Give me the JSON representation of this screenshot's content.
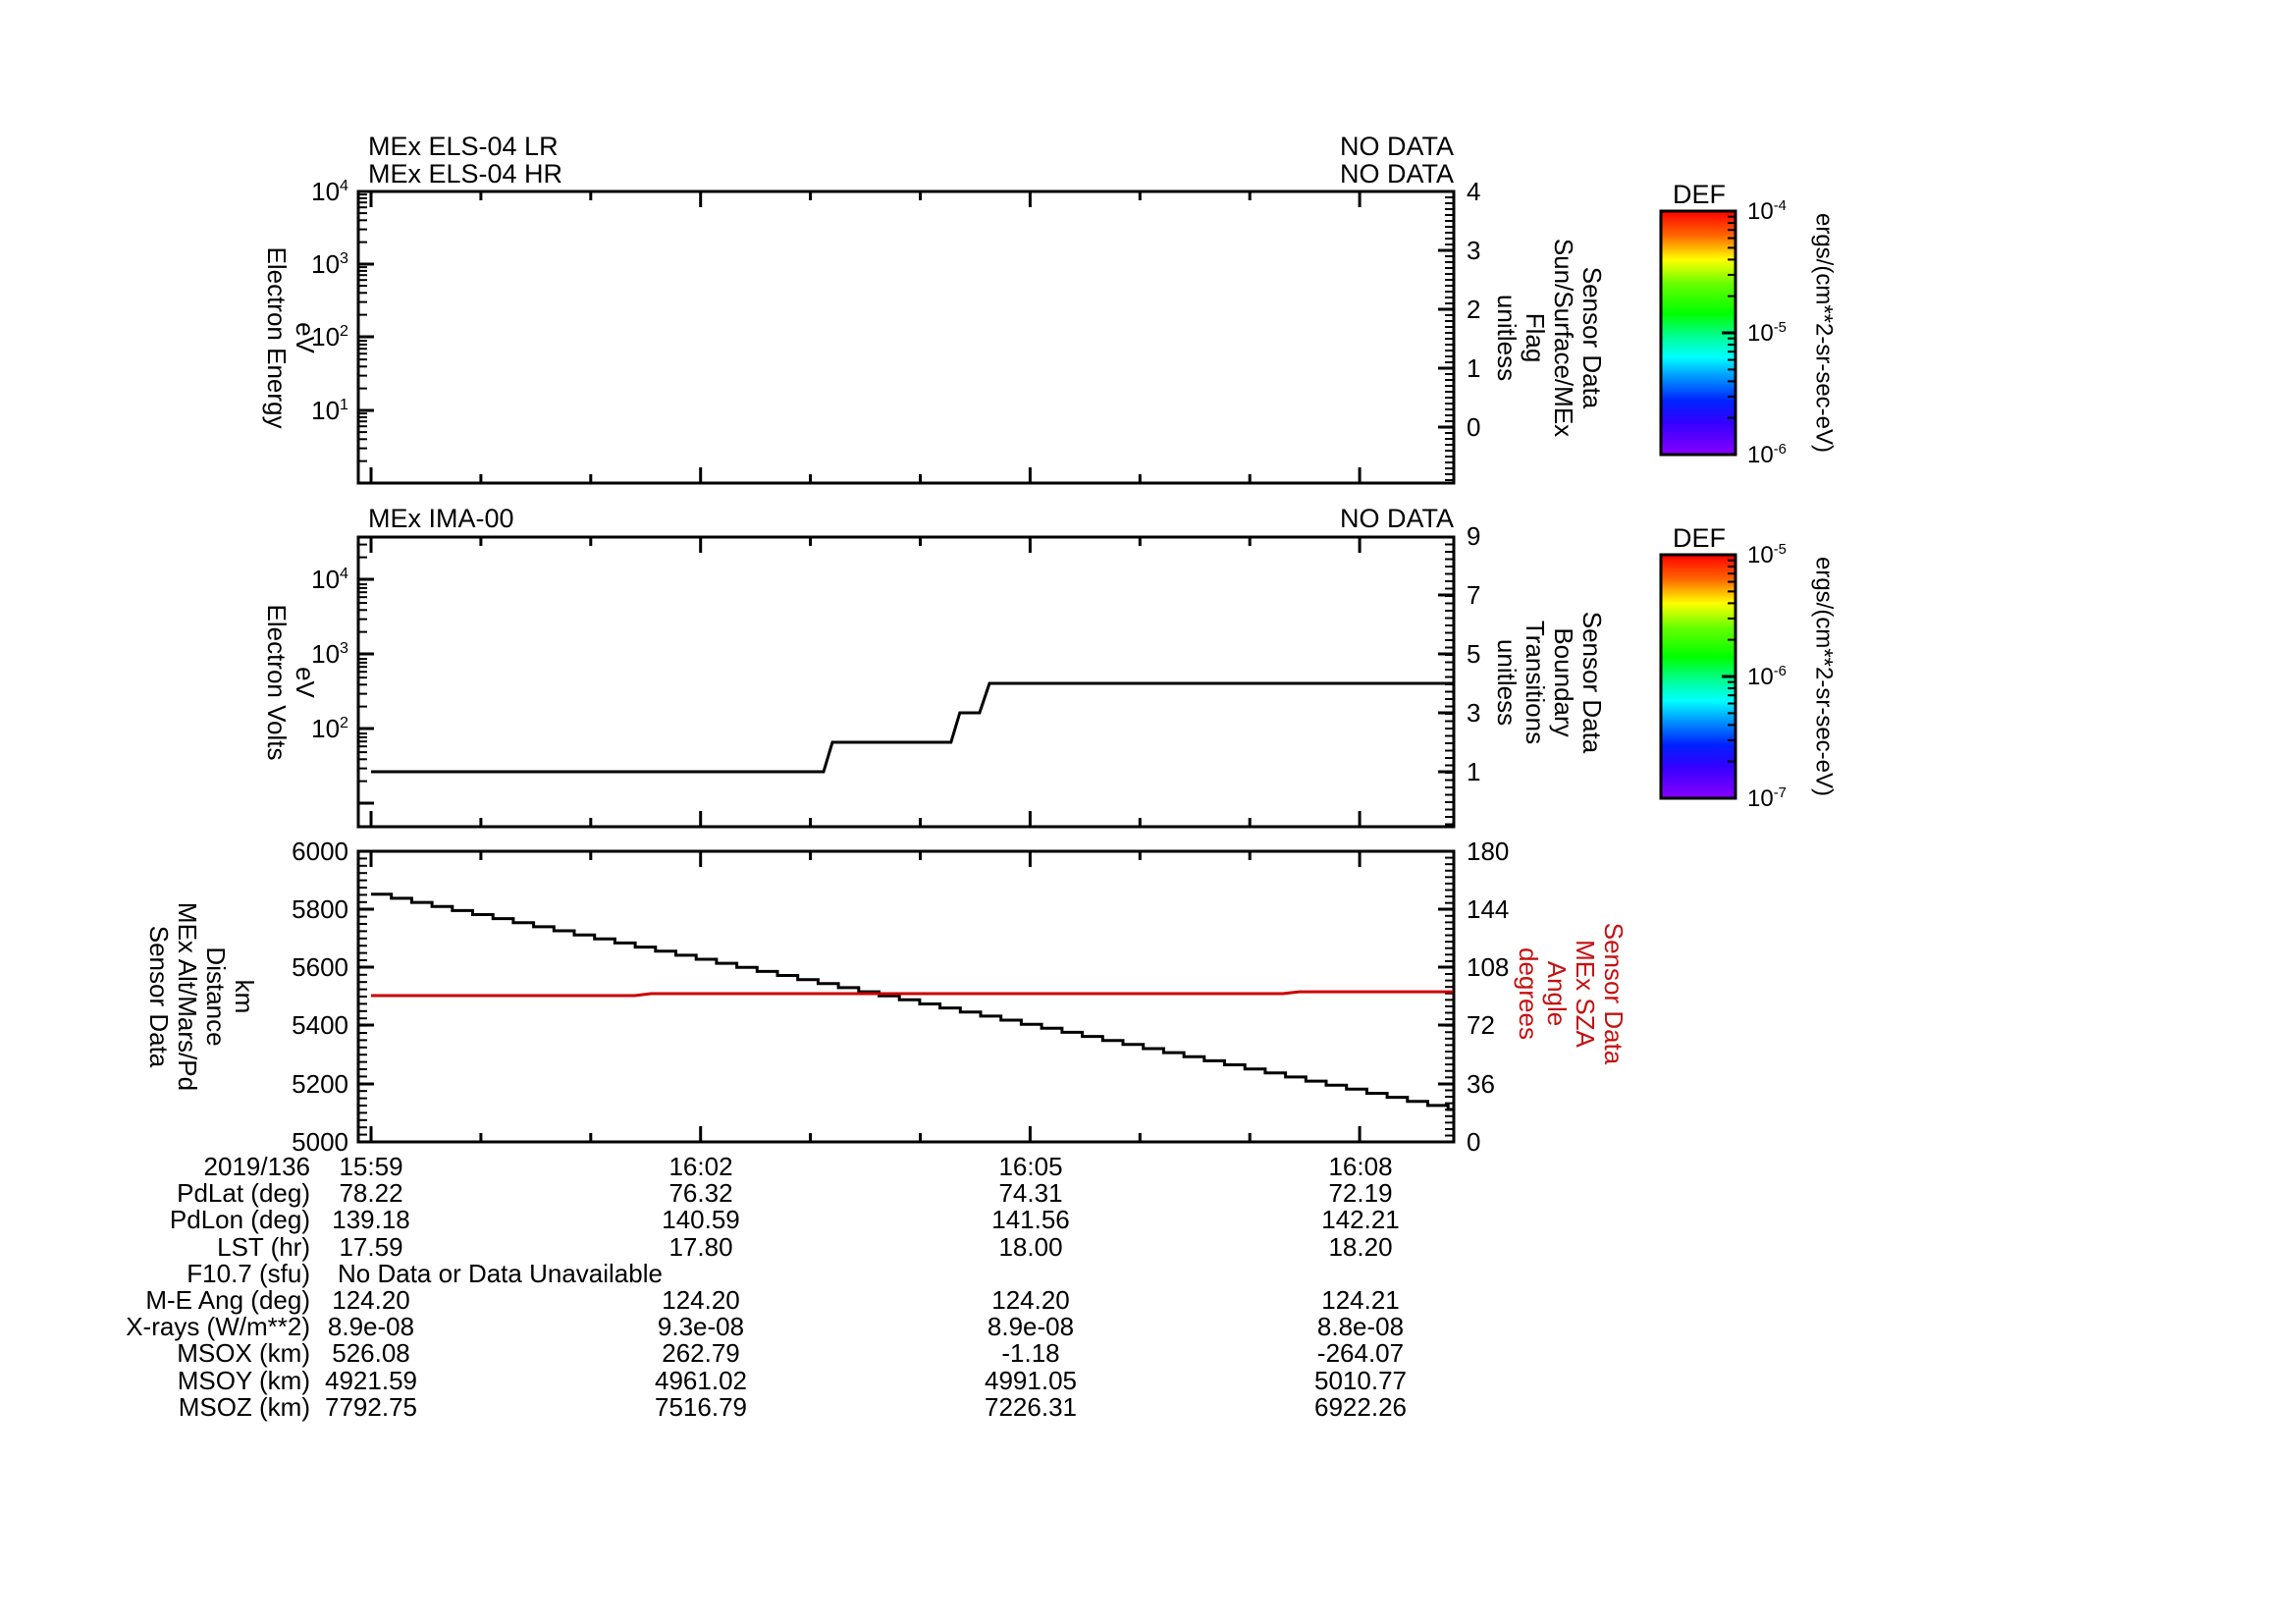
{
  "page": {
    "background": "#ffffff",
    "text_color": "#000000",
    "accent_red": "#c41111"
  },
  "chart_data": [
    {
      "type": "line",
      "panel": "els",
      "titles": [
        "MEx ELS-04 LR",
        "MEx ELS-04 HR"
      ],
      "status": [
        "NO DATA",
        "NO DATA"
      ],
      "ylabel_lines": [
        "Electron Energy",
        "eV"
      ],
      "yscale": "log",
      "ytick_labels": [
        "10^4",
        "10^3",
        "10^2",
        "10^1"
      ],
      "y2label_lines": [
        "Sensor Data",
        "Sun/Surface/MEx",
        "Flag",
        "unitless"
      ],
      "y2tick_labels": [
        "4",
        "3",
        "2",
        "1",
        "0"
      ],
      "y2lim": [
        0,
        4
      ],
      "series": []
    },
    {
      "type": "line",
      "panel": "ima",
      "titles": [
        "MEx IMA-00"
      ],
      "status": [
        "NO DATA"
      ],
      "ylabel_lines": [
        "Electron Volts",
        "eV"
      ],
      "yscale": "log",
      "ytick_labels": [
        "10^4",
        "10^3",
        "10^2"
      ],
      "y2label_lines": [
        "Sensor Data",
        "Boundary",
        "Transitions",
        "unitless"
      ],
      "y2tick_labels": [
        "9",
        "7",
        "5",
        "3",
        "1"
      ],
      "y2lim": [
        1,
        9
      ],
      "series": [
        {
          "name": "boundary-transitions",
          "axis": "y2",
          "color": "#000000",
          "style": "poly",
          "points_t_min": [
            [
              0,
              1
            ],
            [
              4.12,
              1
            ],
            [
              4.2,
              2
            ],
            [
              5.28,
              2
            ],
            [
              5.36,
              3
            ],
            [
              5.54,
              3
            ],
            [
              5.63,
              4
            ],
            [
              9.85,
              4
            ]
          ]
        }
      ]
    },
    {
      "type": "line",
      "panel": "ephemeris",
      "titles": [],
      "status": [],
      "ylabel_lines": [
        "Sensor Data",
        "MEx Alt/Mars/Pd",
        "Distance",
        "km"
      ],
      "yscale": "linear",
      "ylim": [
        5000,
        6000
      ],
      "ytick_labels": [
        "6000",
        "5800",
        "5600",
        "5400",
        "5200",
        "5000"
      ],
      "y2label_lines": [
        "Sensor Data",
        "MEx SZA",
        "Angle",
        "degrees"
      ],
      "y2lim": [
        0,
        180
      ],
      "y2tick_labels": [
        "180",
        "144",
        "108",
        "72",
        "36",
        "0"
      ],
      "xdate": "2019/136",
      "xtick_labels": [
        "15:59",
        "16:02",
        "16:05",
        "16:08"
      ],
      "xtick_minutes": [
        0,
        3,
        6,
        9
      ],
      "series": [
        {
          "name": "mex-altitude",
          "axis": "y",
          "color": "#000000",
          "style": "staircase",
          "points_t_min": [
            [
              0,
              5852
            ],
            [
              9.85,
              5108
            ]
          ]
        },
        {
          "name": "mex-sza",
          "axis": "y2",
          "color": "#cc0000",
          "style": "poly",
          "points_t_min": [
            [
              0,
              90.6
            ],
            [
              2.4,
              90.6
            ],
            [
              2.55,
              91.8
            ],
            [
              8.3,
              91.8
            ],
            [
              8.45,
              93.0
            ],
            [
              9.85,
              93.0
            ]
          ]
        }
      ]
    }
  ],
  "colorbars": [
    {
      "title": "DEF",
      "tick_labels": [
        "10^-4",
        "10^-5",
        "10^-6"
      ],
      "units": "ergs/(cm**2-sr-sec-eV)",
      "colors": [
        [
          0,
          "#ff0000"
        ],
        [
          0.1,
          "#ff6600"
        ],
        [
          0.2,
          "#ffff00"
        ],
        [
          0.3,
          "#66ff00"
        ],
        [
          0.42,
          "#00ff00"
        ],
        [
          0.52,
          "#00ff99"
        ],
        [
          0.6,
          "#00ffff"
        ],
        [
          0.68,
          "#0099ff"
        ],
        [
          0.78,
          "#0022ff"
        ],
        [
          0.87,
          "#3300ff"
        ],
        [
          1,
          "#8800ff"
        ]
      ]
    },
    {
      "title": "DEF",
      "tick_labels": [
        "10^-5",
        "10^-6",
        "10^-7"
      ],
      "units": "ergs/(cm**2-sr-sec-eV)",
      "colors": [
        [
          0,
          "#ff0000"
        ],
        [
          0.1,
          "#ff6600"
        ],
        [
          0.2,
          "#ffff00"
        ],
        [
          0.3,
          "#66ff00"
        ],
        [
          0.42,
          "#00ff00"
        ],
        [
          0.52,
          "#00ff99"
        ],
        [
          0.6,
          "#00ffff"
        ],
        [
          0.68,
          "#0099ff"
        ],
        [
          0.78,
          "#0022ff"
        ],
        [
          0.87,
          "#3300ff"
        ],
        [
          1,
          "#8800ff"
        ]
      ]
    }
  ],
  "table": {
    "date_label": "2019/136",
    "columns": [
      "15:59",
      "16:02",
      "16:05",
      "16:08"
    ],
    "rows": [
      {
        "label": "PdLat (deg)",
        "values": [
          "78.22",
          "76.32",
          "74.31",
          "72.19"
        ]
      },
      {
        "label": "PdLon (deg)",
        "values": [
          "139.18",
          "140.59",
          "141.56",
          "142.21"
        ]
      },
      {
        "label": "LST (hr)",
        "values": [
          "17.59",
          "17.80",
          "18.00",
          "18.20"
        ]
      },
      {
        "label": "F10.7 (sfu)",
        "note": "No Data or Data Unavailable"
      },
      {
        "label": "M-E Ang (deg)",
        "values": [
          "124.20",
          "124.20",
          "124.20",
          "124.21"
        ]
      },
      {
        "label": "X-rays (W/m**2)",
        "values": [
          "8.9e-08",
          "9.3e-08",
          "8.9e-08",
          "8.8e-08"
        ]
      },
      {
        "label": "MSOX (km)",
        "values": [
          "526.08",
          "262.79",
          "-1.18",
          "-264.07"
        ]
      },
      {
        "label": "MSOY (km)",
        "values": [
          "4921.59",
          "4961.02",
          "4991.05",
          "5010.77"
        ]
      },
      {
        "label": "MSOZ (km)",
        "values": [
          "7792.75",
          "7516.79",
          "7226.31",
          "6922.26"
        ]
      }
    ]
  }
}
